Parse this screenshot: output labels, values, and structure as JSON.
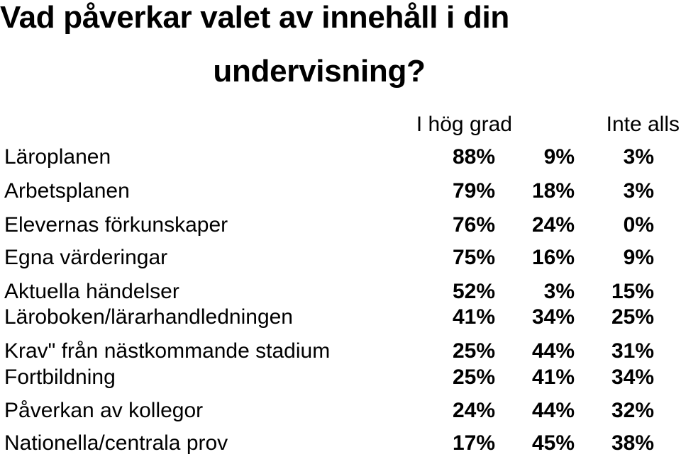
{
  "title": {
    "line1": "Vad påverkar valet av innehåll i din",
    "line2": "undervisning?"
  },
  "headers": {
    "high": "I hög grad",
    "none": "Inte alls"
  },
  "rows": [
    {
      "label": "Läroplanen",
      "values": [
        "88%",
        "9%",
        "3%"
      ]
    },
    {
      "label": "Arbetsplanen",
      "values": [
        "79%",
        "18%",
        "3%"
      ]
    },
    {
      "label": "Elevernas förkunskaper",
      "values": [
        "76%",
        "24%",
        "0%"
      ]
    },
    {
      "label": "Egna värderingar",
      "values": [
        "75%",
        "16%",
        "9%"
      ]
    },
    {
      "label": "Aktuella händelser",
      "values": [
        "52%",
        "3%",
        "15%"
      ]
    },
    {
      "label": "Läroboken/lärarhandledningen",
      "values": [
        "41%",
        "34%",
        "25%"
      ]
    },
    {
      "label": " Krav\" från nästkommande stadium",
      "values": [
        "25%",
        "44%",
        "31%"
      ]
    },
    {
      "label": "Fortbildning",
      "values": [
        "25%",
        "41%",
        "34%"
      ]
    },
    {
      "label": "Påverkan av kollegor",
      "values": [
        "24%",
        "44%",
        "32%"
      ]
    },
    {
      "label": "Nationella/centrala prov",
      "values": [
        "17%",
        "45%",
        "38%"
      ]
    }
  ]
}
